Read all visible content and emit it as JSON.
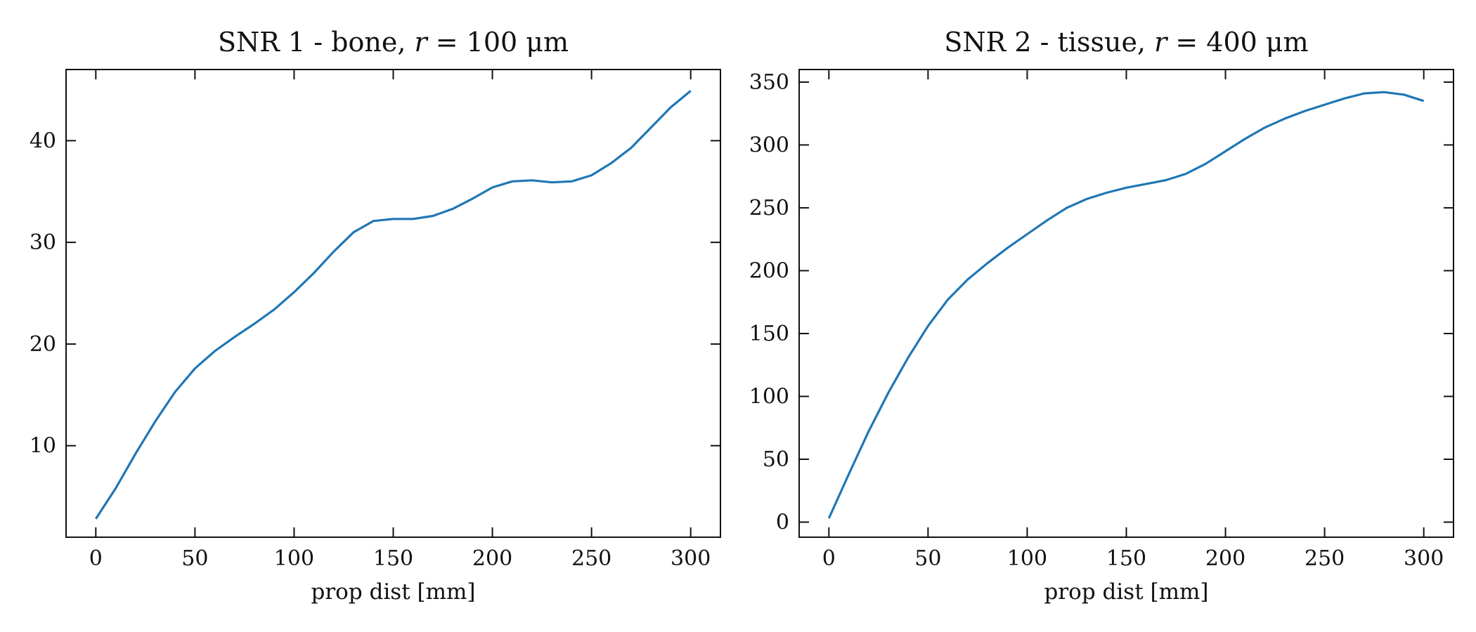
{
  "chart_data": [
    {
      "type": "line",
      "title": "SNR 1 - bone, r = 100 μm",
      "xlabel": "prop dist [mm]",
      "ylabel": "",
      "xlim": [
        -15,
        315
      ],
      "ylim": [
        1,
        47
      ],
      "xticks": [
        0,
        50,
        100,
        150,
        200,
        250,
        300
      ],
      "yticks": [
        10,
        20,
        30,
        40
      ],
      "grid": false,
      "series": [
        {
          "color": "#1f77b4",
          "x": [
            0,
            10,
            20,
            30,
            40,
            50,
            60,
            70,
            80,
            90,
            100,
            110,
            120,
            130,
            140,
            150,
            160,
            170,
            180,
            190,
            200,
            210,
            220,
            230,
            240,
            250,
            260,
            270,
            280,
            290,
            300
          ],
          "y": [
            2.8,
            5.8,
            9.2,
            12.4,
            15.3,
            17.6,
            19.3,
            20.7,
            22.0,
            23.4,
            25.1,
            27.0,
            29.1,
            31.0,
            32.1,
            32.3,
            32.3,
            32.6,
            33.3,
            34.3,
            35.4,
            36.0,
            36.1,
            35.9,
            36.0,
            36.6,
            37.8,
            39.3,
            41.3,
            43.3,
            44.9
          ]
        }
      ]
    },
    {
      "type": "line",
      "title": "SNR 2 - tissue, r = 400 μm",
      "xlabel": "prop dist [mm]",
      "ylabel": "",
      "xlim": [
        -15,
        315
      ],
      "ylim": [
        -12,
        360
      ],
      "xticks": [
        0,
        50,
        100,
        150,
        200,
        250,
        300
      ],
      "yticks": [
        0,
        50,
        100,
        150,
        200,
        250,
        300,
        350
      ],
      "grid": false,
      "series": [
        {
          "color": "#1f77b4",
          "x": [
            0,
            10,
            20,
            30,
            40,
            50,
            60,
            70,
            80,
            90,
            100,
            110,
            120,
            130,
            140,
            150,
            160,
            170,
            180,
            190,
            200,
            210,
            220,
            230,
            240,
            250,
            260,
            270,
            280,
            290,
            300
          ],
          "y": [
            3,
            38,
            72,
            103,
            131,
            156,
            177,
            193,
            206,
            218,
            229,
            240,
            250,
            257,
            262,
            266,
            269,
            272,
            277,
            285,
            295,
            305,
            314,
            321,
            327,
            332,
            337,
            341,
            342,
            340,
            335
          ]
        }
      ]
    }
  ]
}
